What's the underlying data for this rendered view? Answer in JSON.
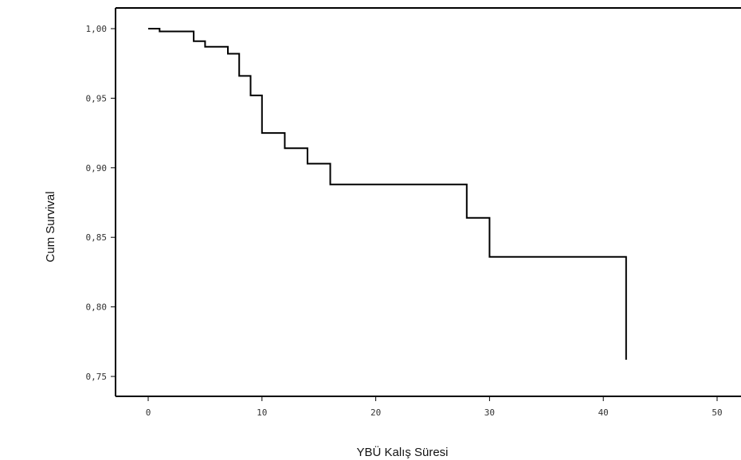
{
  "chart_data": {
    "type": "line",
    "step": true,
    "xlabel": "YBÜ Kalış Süresi",
    "ylabel": "Cum Survival",
    "xlim": [
      0,
      50
    ],
    "ylim": [
      0.75,
      1.0
    ],
    "x_ticks": [
      0,
      10,
      20,
      30,
      40,
      50
    ],
    "x_tick_labels": [
      "0",
      "10",
      "20",
      "30",
      "40",
      "50"
    ],
    "y_ticks": [
      1.0,
      0.95,
      0.9,
      0.85,
      0.8,
      0.75
    ],
    "y_tick_labels": [
      "1,00",
      "0,95",
      "0,90",
      "0,85",
      "0,80",
      "0,75"
    ],
    "grid": false,
    "series": [
      {
        "x": [
          0,
          1,
          4,
          5,
          7,
          8,
          9,
          10,
          12,
          14,
          16,
          28,
          30,
          42,
          42
        ],
        "y": [
          1.0,
          0.998,
          0.991,
          0.987,
          0.982,
          0.966,
          0.952,
          0.925,
          0.914,
          0.903,
          0.888,
          0.864,
          0.836,
          0.836,
          0.762
        ]
      }
    ],
    "colors": {
      "line": "#000000",
      "axis": "#000000"
    }
  }
}
